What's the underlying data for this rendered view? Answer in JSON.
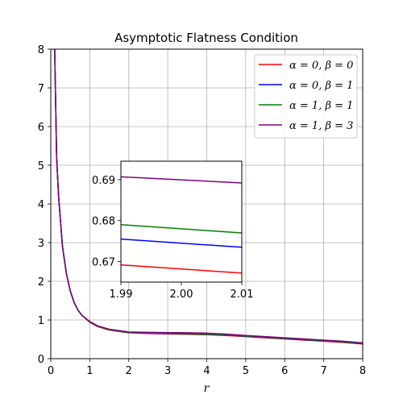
{
  "chart_data": {
    "type": "line",
    "title": "Asymptotic Flatness Condition",
    "xlabel": "r",
    "ylabel": "",
    "xlim": [
      0,
      8
    ],
    "ylim": [
      0,
      8
    ],
    "xticks": [
      "0",
      "1",
      "2",
      "3",
      "4",
      "5",
      "6",
      "7",
      "8"
    ],
    "yticks": [
      "0",
      "1",
      "2",
      "3",
      "4",
      "5",
      "6",
      "7",
      "8"
    ],
    "grid": true,
    "legend_position": "top-right",
    "legend": [
      "α = 0, β = 0",
      "α = 0, β = 1",
      "α = 1, β = 1",
      "α = 1, β = 3"
    ],
    "series": [
      {
        "name": "α = 0, β = 0",
        "color": "#ff0000",
        "x": [
          0.1,
          0.15,
          0.2,
          0.3,
          0.4,
          0.5,
          0.6,
          0.7,
          0.8,
          1.0,
          1.2,
          1.5,
          2.0,
          2.5,
          3.0,
          3.5,
          4.0,
          4.5,
          5.0,
          5.5,
          6.0,
          6.5,
          7.0,
          7.5,
          8.0
        ],
        "y": [
          8.0,
          5.2,
          4.2,
          2.9,
          2.2,
          1.75,
          1.45,
          1.25,
          1.12,
          0.94,
          0.83,
          0.74,
          0.67,
          0.65,
          0.64,
          0.63,
          0.62,
          0.6,
          0.57,
          0.54,
          0.51,
          0.48,
          0.45,
          0.42,
          0.38
        ]
      },
      {
        "name": "α = 0, β = 1",
        "color": "#0000ff",
        "x": [
          0.1,
          0.15,
          0.2,
          0.3,
          0.4,
          0.5,
          0.6,
          0.7,
          0.8,
          1.0,
          1.2,
          1.5,
          2.0,
          2.5,
          3.0,
          3.5,
          4.0,
          4.5,
          5.0,
          5.5,
          6.0,
          6.5,
          7.0,
          7.5,
          8.0
        ],
        "y": [
          8.0,
          5.2,
          4.2,
          2.9,
          2.2,
          1.75,
          1.45,
          1.25,
          1.12,
          0.95,
          0.84,
          0.75,
          0.675,
          0.66,
          0.65,
          0.64,
          0.63,
          0.61,
          0.58,
          0.55,
          0.52,
          0.49,
          0.46,
          0.43,
          0.39
        ]
      },
      {
        "name": "α = 1, β = 1",
        "color": "#008000",
        "x": [
          0.1,
          0.15,
          0.2,
          0.3,
          0.4,
          0.5,
          0.6,
          0.7,
          0.8,
          1.0,
          1.2,
          1.5,
          2.0,
          2.5,
          3.0,
          3.5,
          4.0,
          4.5,
          5.0,
          5.5,
          6.0,
          6.5,
          7.0,
          7.5,
          8.0
        ],
        "y": [
          8.0,
          5.2,
          4.2,
          2.9,
          2.2,
          1.75,
          1.45,
          1.25,
          1.12,
          0.95,
          0.84,
          0.75,
          0.678,
          0.665,
          0.655,
          0.645,
          0.635,
          0.615,
          0.585,
          0.555,
          0.525,
          0.495,
          0.465,
          0.435,
          0.395
        ]
      },
      {
        "name": "α = 1, β = 3",
        "color": "#800080",
        "x": [
          0.1,
          0.15,
          0.2,
          0.3,
          0.4,
          0.5,
          0.6,
          0.7,
          0.8,
          1.0,
          1.2,
          1.5,
          2.0,
          2.5,
          3.0,
          3.5,
          4.0,
          4.5,
          5.0,
          5.5,
          6.0,
          6.5,
          7.0,
          7.5,
          8.0
        ],
        "y": [
          8.0,
          5.2,
          4.2,
          2.9,
          2.2,
          1.75,
          1.45,
          1.25,
          1.12,
          0.96,
          0.85,
          0.76,
          0.69,
          0.68,
          0.675,
          0.67,
          0.66,
          0.635,
          0.6,
          0.57,
          0.54,
          0.51,
          0.48,
          0.45,
          0.41
        ]
      }
    ],
    "inset": {
      "xlim": [
        1.99,
        2.01
      ],
      "ylim": [
        0.665,
        0.6945
      ],
      "xticks": [
        "1.99",
        "2.00",
        "2.01"
      ],
      "yticks": [
        "0.67",
        "0.68",
        "0.69"
      ],
      "grid": false,
      "series": [
        {
          "name": "α = 0, β = 0",
          "color": "#ff0000",
          "x": [
            1.99,
            2.01
          ],
          "y": [
            0.6692,
            0.6672
          ]
        },
        {
          "name": "α = 0, β = 1",
          "color": "#0000ff",
          "x": [
            1.99,
            2.01
          ],
          "y": [
            0.6755,
            0.6735
          ]
        },
        {
          "name": "α = 1, β = 1",
          "color": "#008000",
          "x": [
            1.99,
            2.01
          ],
          "y": [
            0.679,
            0.677
          ]
        },
        {
          "name": "α = 1, β = 3",
          "color": "#800080",
          "x": [
            1.99,
            2.01
          ],
          "y": [
            0.6907,
            0.6892
          ]
        }
      ]
    }
  }
}
